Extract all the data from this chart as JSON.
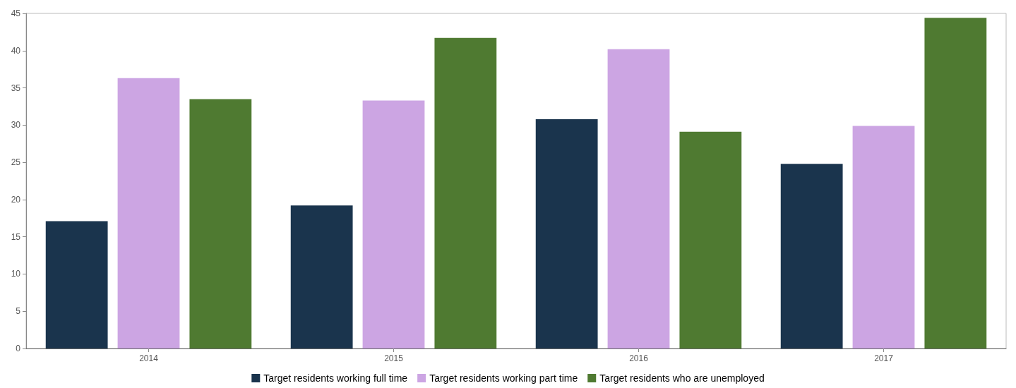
{
  "chart_data": {
    "type": "bar",
    "categories": [
      "2014",
      "2015",
      "2016",
      "2017"
    ],
    "series": [
      {
        "name": "Target residents working full time",
        "color": "#1a344d",
        "values": [
          17.1,
          19.2,
          30.8,
          24.8
        ]
      },
      {
        "name": "Target residents working part time",
        "color": "#cca5e3",
        "values": [
          36.3,
          33.3,
          40.2,
          29.9
        ]
      },
      {
        "name": "Target residents who are unemployed",
        "color": "#4f7a31",
        "values": [
          33.5,
          41.7,
          29.1,
          44.4
        ]
      }
    ],
    "ylim": [
      0,
      45
    ],
    "yticks": [
      0,
      5,
      10,
      15,
      20,
      25,
      30,
      35,
      40,
      45
    ],
    "grid": false,
    "legend": "bottom"
  }
}
